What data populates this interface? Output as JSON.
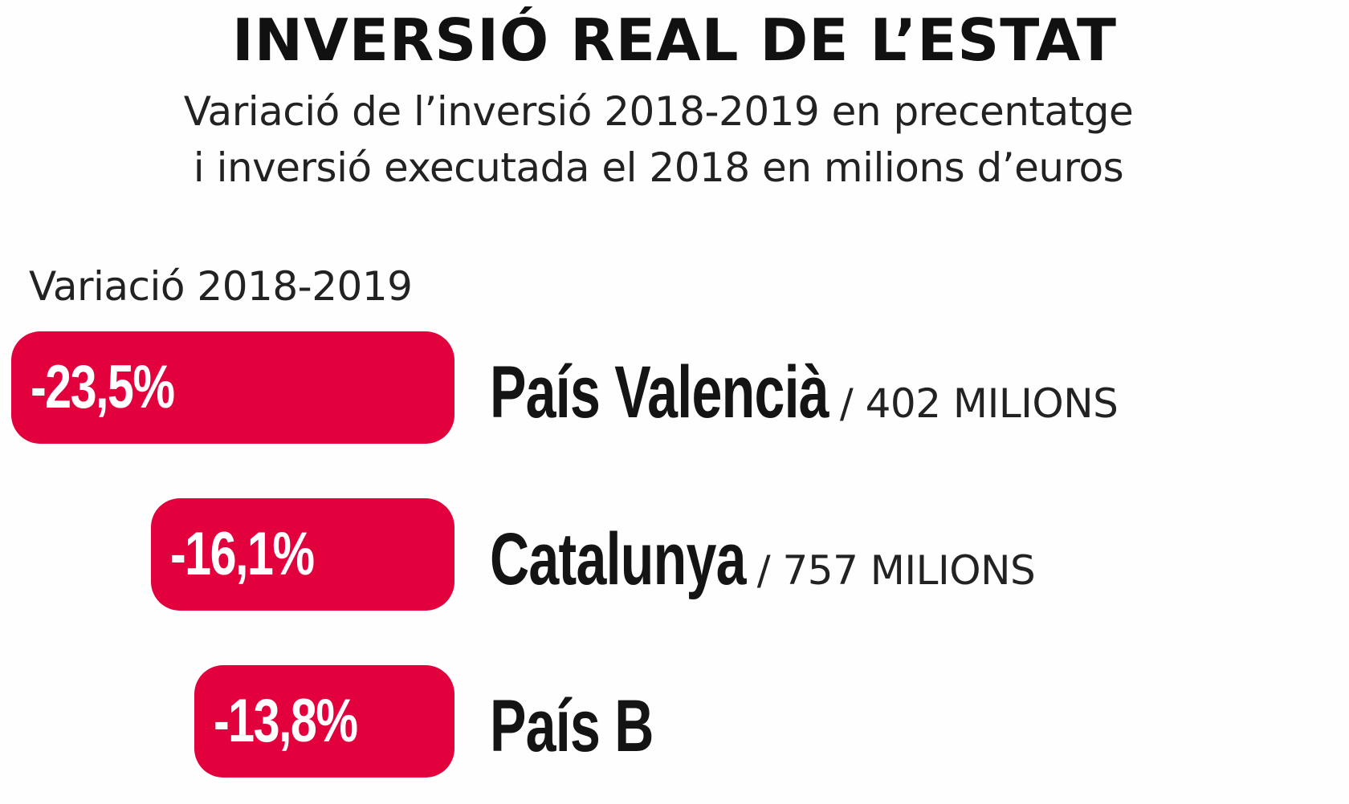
{
  "title": "INVERSIÓ REAL DE L’ESTAT",
  "subtitle_line1": "Variació de l’inversió 2018-2019 en precentatge",
  "subtitle_line2": "i inversió executada el 2018 en milions d’euros",
  "chart_data": {
    "type": "bar",
    "orientation": "horizontal",
    "series_label": "Variació 2018-2019",
    "bar_color": "#e2003d",
    "categories": [
      "País Valencià",
      "Catalunya",
      "País B"
    ],
    "values": [
      -23.5,
      -16.1,
      -13.8
    ],
    "value_labels": [
      "-23,5%",
      "-16,1%",
      "-13,8%"
    ],
    "investment_labels": [
      "/ 402 MILIONS",
      "/ 757 MILIONS",
      ""
    ],
    "investment_2018_millions": [
      402,
      757,
      null
    ]
  }
}
